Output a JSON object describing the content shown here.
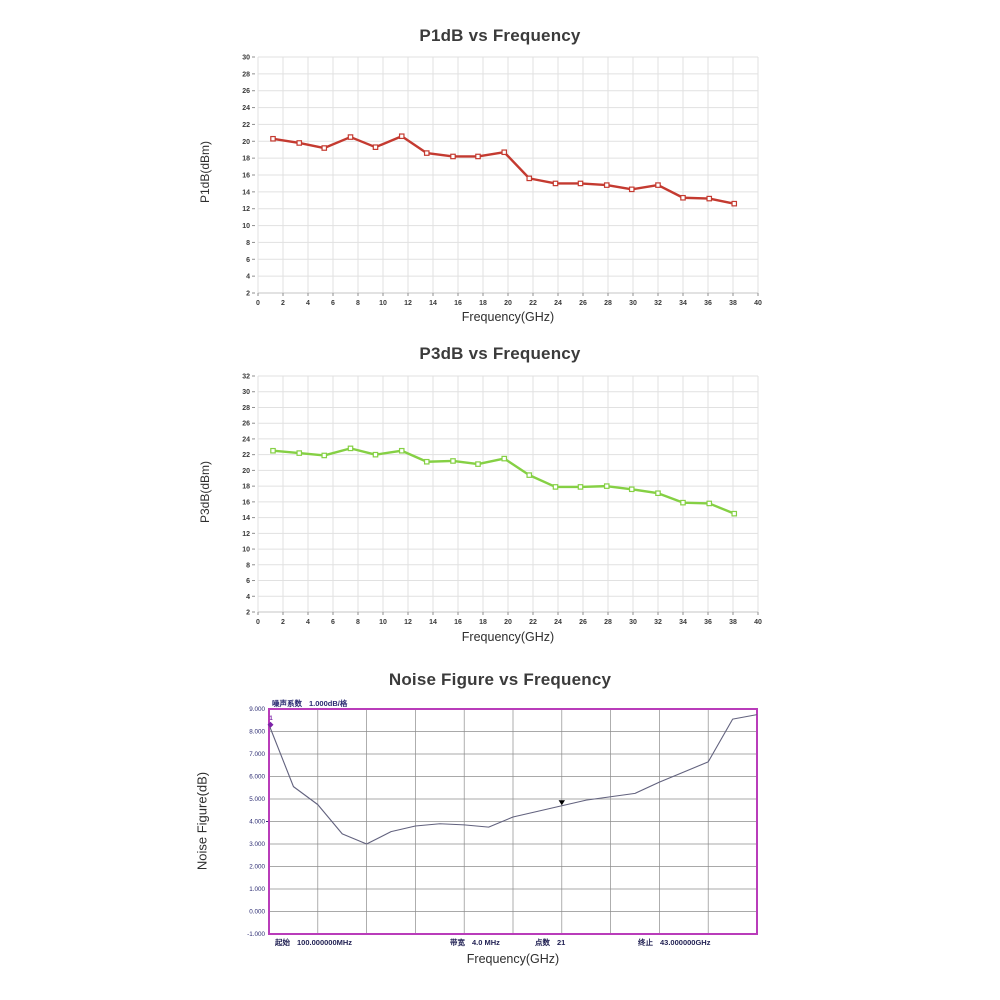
{
  "page": {
    "background": "#ffffff"
  },
  "chart_data": [
    {
      "id": "p1db",
      "type": "line",
      "title": "P1dB vs Frequency",
      "xlabel": "Frequency(GHz)",
      "ylabel": "P1dB(dBm)",
      "xlim": [
        0,
        40
      ],
      "ylim": [
        2,
        30
      ],
      "xticks": [
        0,
        2,
        4,
        6,
        8,
        10,
        12,
        14,
        16,
        18,
        20,
        22,
        24,
        26,
        28,
        30,
        32,
        34,
        36,
        38,
        40
      ],
      "yticks": [
        30,
        28,
        26,
        24,
        22,
        20,
        18,
        16,
        14,
        12,
        10,
        8,
        6,
        4,
        2
      ],
      "grid": true,
      "legend": "none",
      "line_color": "#c43a30",
      "marker": "open-square",
      "x": [
        1.2,
        3.3,
        5.3,
        7.4,
        9.4,
        11.5,
        13.5,
        15.6,
        17.6,
        19.7,
        21.7,
        23.8,
        25.8,
        27.9,
        29.9,
        32.0,
        34.0,
        36.1,
        38.1
      ],
      "y": [
        20.3,
        19.8,
        19.2,
        20.5,
        19.3,
        20.6,
        18.6,
        18.2,
        18.2,
        18.7,
        15.6,
        15.0,
        15.0,
        14.8,
        14.3,
        14.8,
        13.3,
        13.2,
        12.6
      ]
    },
    {
      "id": "p3db",
      "type": "line",
      "title": "P3dB vs Frequency",
      "xlabel": "Frequency(GHz)",
      "ylabel": "P3dB(dBm)",
      "xlim": [
        0,
        40
      ],
      "ylim": [
        2,
        32
      ],
      "xticks": [
        0,
        2,
        4,
        6,
        8,
        10,
        12,
        14,
        16,
        18,
        20,
        22,
        24,
        26,
        28,
        30,
        32,
        34,
        36,
        38,
        40
      ],
      "yticks": [
        32,
        30,
        28,
        26,
        24,
        22,
        20,
        18,
        16,
        14,
        12,
        10,
        8,
        6,
        4,
        2
      ],
      "grid": true,
      "legend": "none",
      "line_color": "#85d044",
      "marker": "open-square",
      "x": [
        1.2,
        3.3,
        5.3,
        7.4,
        9.4,
        11.5,
        13.5,
        15.6,
        17.6,
        19.7,
        21.7,
        23.8,
        25.8,
        27.9,
        29.9,
        32.0,
        34.0,
        36.1,
        38.1
      ],
      "y": [
        22.5,
        22.2,
        21.9,
        22.8,
        22.0,
        22.5,
        21.1,
        21.2,
        20.8,
        21.5,
        19.4,
        17.9,
        17.9,
        18.0,
        17.6,
        17.1,
        15.9,
        15.8,
        14.5
      ]
    },
    {
      "id": "noise",
      "type": "line",
      "title": "Noise Figure vs Frequency",
      "xlabel": "Frequency(GHz)",
      "ylabel": "Noise Figure(dB)",
      "header": {
        "trace_label": "噪声系数",
        "scale_label": "1.000dB/格"
      },
      "frame_color": "#b93cba",
      "grid_color": "#8c8c8c",
      "trace_color": "#62627e",
      "text_color": "#2b2b72",
      "xlim": [
        0.1,
        43
      ],
      "ylim": [
        -1,
        9
      ],
      "yticks": [
        "9.000",
        "8.000",
        "7.000",
        "6.000",
        "5.000",
        "4.000",
        "3.000",
        "2.000",
        "1.000",
        "0.000",
        "-1.000"
      ],
      "x_grid_divisions": 10,
      "ref_level_value": 4.0,
      "x": [
        0.1,
        2.25,
        4.39,
        6.54,
        8.68,
        10.83,
        12.97,
        15.12,
        17.26,
        19.41,
        21.55,
        23.7,
        25.84,
        27.99,
        30.13,
        32.28,
        34.42,
        36.57,
        38.71,
        40.86,
        43.0
      ],
      "y": [
        8.3,
        5.55,
        4.75,
        3.45,
        3.0,
        3.55,
        3.8,
        3.9,
        3.85,
        3.75,
        4.2,
        4.45,
        4.7,
        4.95,
        5.1,
        5.25,
        5.75,
        6.2,
        6.65,
        8.55,
        8.75
      ],
      "markers": {
        "start": {
          "label": "1",
          "value": 8.3,
          "color": "#7d22a8"
        },
        "cursor": {
          "point_index": 12,
          "shape": "triangle-down",
          "color": "#000000"
        }
      },
      "footer": [
        {
          "label": "起始",
          "value": "100.000000MHz"
        },
        {
          "label": "带宽",
          "value": "4.0  MHz"
        },
        {
          "label": "点数",
          "value": "21"
        },
        {
          "label": "终止",
          "value": "43.000000GHz"
        }
      ]
    }
  ]
}
